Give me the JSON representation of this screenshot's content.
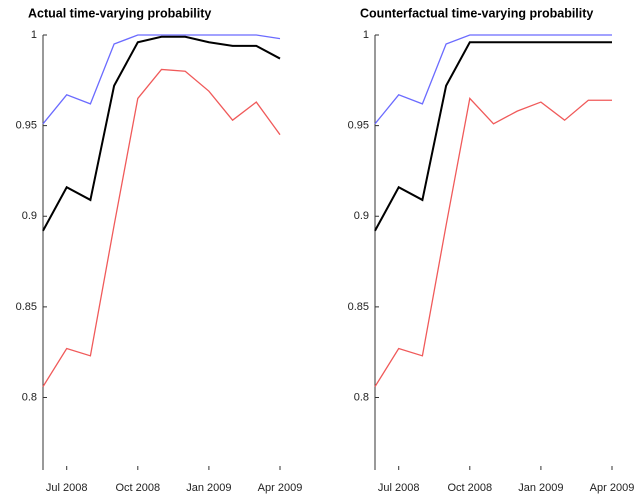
{
  "chart_data": [
    {
      "type": "line",
      "title": "Actual time-varying probability",
      "categories": [
        null,
        "Jul 2008",
        null,
        null,
        "Oct 2008",
        null,
        null,
        "Jan 2009",
        null,
        null,
        "Apr 2009"
      ],
      "series": [
        {
          "color": "#6b6bff",
          "values": [
            0.951,
            0.967,
            0.962,
            0.995,
            1.0,
            1.0,
            1.0,
            1.0,
            1.0,
            1.0,
            0.998
          ]
        },
        {
          "color": "#000000",
          "values": [
            0.892,
            0.916,
            0.909,
            0.972,
            0.996,
            0.999,
            0.999,
            0.996,
            0.994,
            0.994,
            0.987
          ]
        },
        {
          "color": "#f05a5a",
          "values": [
            0.806,
            0.827,
            0.823,
            0.895,
            0.965,
            0.981,
            0.98,
            0.969,
            0.953,
            0.963,
            0.945
          ]
        }
      ],
      "ylim": [
        0.76,
        1
      ],
      "yticks": [
        0.8,
        0.85,
        0.9,
        0.95,
        1
      ]
    },
    {
      "type": "line",
      "title": "Counterfactual time-varying probability",
      "categories": [
        null,
        "Jul 2008",
        null,
        null,
        "Oct 2008",
        null,
        null,
        "Jan 2009",
        null,
        null,
        "Apr 2009"
      ],
      "series": [
        {
          "color": "#6b6bff",
          "values": [
            0.951,
            0.967,
            0.962,
            0.995,
            1.0,
            1.0,
            1.0,
            1.0,
            1.0,
            1.0,
            1.0
          ]
        },
        {
          "color": "#000000",
          "values": [
            0.892,
            0.916,
            0.909,
            0.972,
            0.996,
            0.996,
            0.996,
            0.996,
            0.996,
            0.996,
            0.996
          ]
        },
        {
          "color": "#f05a5a",
          "values": [
            0.806,
            0.827,
            0.823,
            0.895,
            0.965,
            0.951,
            0.958,
            0.963,
            0.953,
            0.964,
            0.964
          ]
        }
      ],
      "ylim": [
        0.76,
        1
      ],
      "yticks": [
        0.8,
        0.85,
        0.9,
        0.95,
        1
      ]
    }
  ]
}
